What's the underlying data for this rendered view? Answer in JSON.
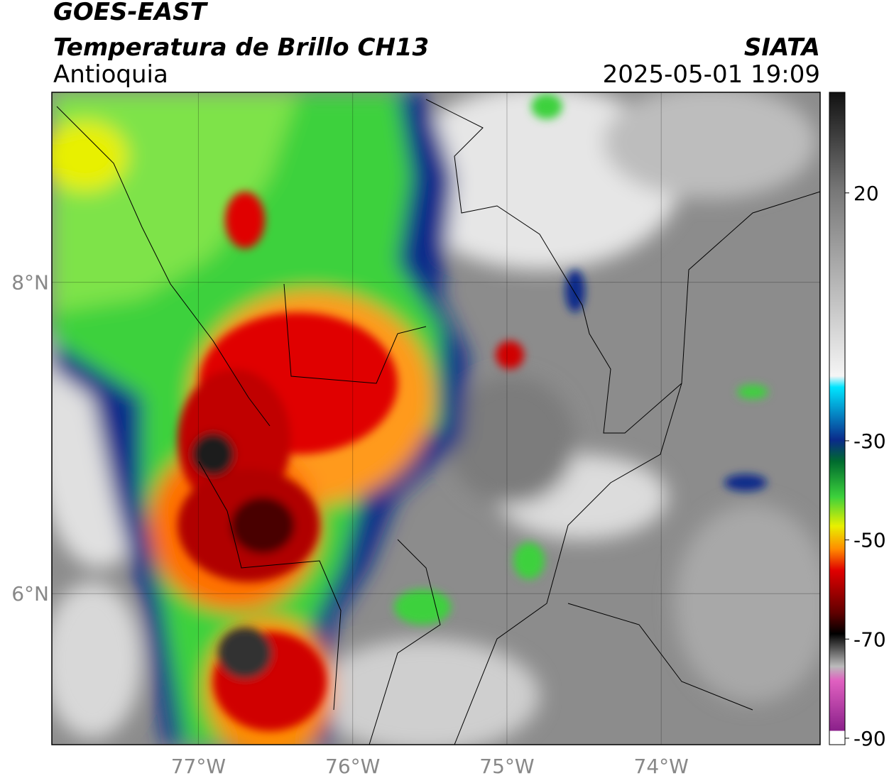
{
  "header": {
    "title": "GOES-EAST",
    "subtitle": "Temperatura de Brillo CH13",
    "region": "Antioquia",
    "source": "SIATA",
    "datetime": "2025-05-01 19:09"
  },
  "map": {
    "xlim": [
      -77.95,
      -72.97
    ],
    "ylim": [
      5.03,
      9.22
    ],
    "xticks": [
      {
        "value": -77,
        "label": "77°W"
      },
      {
        "value": -76,
        "label": "76°W"
      },
      {
        "value": -75,
        "label": "75°W"
      },
      {
        "value": -74,
        "label": "74°W"
      }
    ],
    "yticks": [
      {
        "value": 8,
        "label": "8°N"
      },
      {
        "value": 6,
        "label": "6°N"
      }
    ],
    "grid": true
  },
  "colorbar": {
    "lim": [
      -91.3,
      40.3
    ],
    "ticks": [
      20,
      -30,
      -50,
      -70,
      -90
    ]
  }
}
